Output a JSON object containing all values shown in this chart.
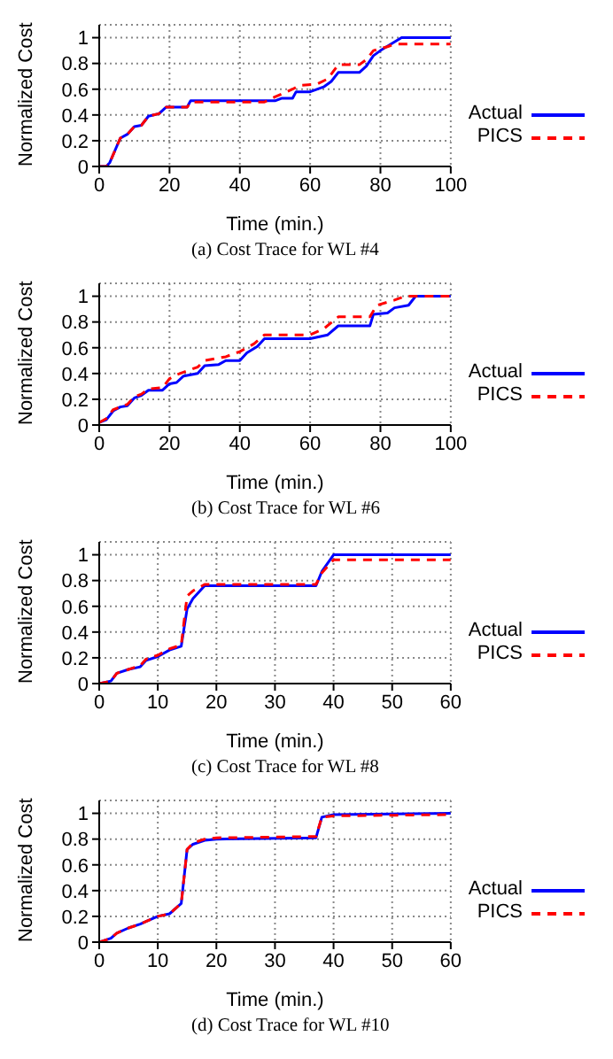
{
  "chart_data": [
    {
      "type": "line",
      "title": "(a) Cost Trace for WL #4",
      "xlabel": "Time (min.)",
      "ylabel": "Normalized Cost",
      "xlim": [
        0,
        100
      ],
      "xticks": [
        0,
        20,
        40,
        60,
        80,
        100
      ],
      "ylim": [
        0,
        1.1
      ],
      "yticks": [
        0,
        0.2,
        0.4,
        0.6,
        0.8,
        1
      ],
      "grid": true,
      "legend": "right",
      "marker": "none",
      "series": [
        {
          "name": "Actual",
          "color": "#0000ff",
          "line_style": "solid",
          "x": [
            0,
            2,
            3,
            6,
            8,
            10,
            12,
            14,
            17,
            19,
            25,
            26,
            50,
            52,
            55,
            56,
            60,
            64,
            66,
            68,
            74,
            76,
            78,
            80,
            83,
            86,
            100
          ],
          "values": [
            0,
            0,
            0.03,
            0.22,
            0.25,
            0.31,
            0.32,
            0.39,
            0.41,
            0.46,
            0.46,
            0.51,
            0.51,
            0.53,
            0.53,
            0.58,
            0.58,
            0.62,
            0.66,
            0.73,
            0.73,
            0.78,
            0.86,
            0.9,
            0.95,
            1.0,
            1.0
          ]
        },
        {
          "name": "PICS",
          "color": "#ff0000",
          "line_style": "dashed",
          "x": [
            0,
            2,
            3,
            6,
            8,
            10,
            12,
            14,
            17,
            19,
            25,
            26,
            47,
            50,
            55,
            57,
            62,
            65,
            68,
            74,
            76,
            78,
            82,
            84,
            100
          ],
          "values": [
            0,
            0,
            0.03,
            0.22,
            0.25,
            0.31,
            0.32,
            0.39,
            0.41,
            0.46,
            0.46,
            0.5,
            0.5,
            0.54,
            0.6,
            0.63,
            0.64,
            0.68,
            0.79,
            0.79,
            0.83,
            0.9,
            0.93,
            0.95,
            0.95
          ]
        }
      ]
    },
    {
      "type": "line",
      "title": "(b) Cost Trace for WL #6",
      "xlabel": "Time (min.)",
      "ylabel": "Normalized Cost",
      "xlim": [
        0,
        100
      ],
      "xticks": [
        0,
        20,
        40,
        60,
        80,
        100
      ],
      "ylim": [
        0,
        1.1
      ],
      "yticks": [
        0,
        0.2,
        0.4,
        0.6,
        0.8,
        1
      ],
      "grid": true,
      "legend": "right",
      "marker": "none",
      "series": [
        {
          "name": "Actual",
          "color": "#0000ff",
          "line_style": "solid",
          "x": [
            0,
            2,
            4,
            6,
            8,
            10,
            12,
            14,
            18,
            20,
            22,
            24,
            28,
            30,
            34,
            36,
            40,
            42,
            45,
            47,
            60,
            65,
            68,
            77,
            78,
            82,
            84,
            88,
            90,
            100
          ],
          "values": [
            0.02,
            0.04,
            0.11,
            0.14,
            0.15,
            0.21,
            0.23,
            0.27,
            0.27,
            0.32,
            0.33,
            0.38,
            0.4,
            0.46,
            0.47,
            0.5,
            0.5,
            0.56,
            0.61,
            0.67,
            0.67,
            0.7,
            0.77,
            0.77,
            0.86,
            0.87,
            0.91,
            0.93,
            1.0,
            1.0
          ]
        },
        {
          "name": "PICS",
          "color": "#ff0000",
          "line_style": "dashed",
          "x": [
            0,
            2,
            4,
            6,
            8,
            10,
            12,
            14,
            18,
            20,
            22,
            26,
            28,
            30,
            36,
            40,
            44,
            47,
            60,
            64,
            68,
            77,
            79,
            84,
            87,
            100
          ],
          "values": [
            0.02,
            0.05,
            0.12,
            0.14,
            0.16,
            0.22,
            0.24,
            0.28,
            0.29,
            0.36,
            0.39,
            0.43,
            0.45,
            0.5,
            0.53,
            0.57,
            0.63,
            0.7,
            0.7,
            0.75,
            0.84,
            0.84,
            0.93,
            0.97,
            1.0,
            1.0
          ]
        }
      ]
    },
    {
      "type": "line",
      "title": "(c) Cost Trace for WL #8",
      "xlabel": "Time (min.)",
      "ylabel": "Normalized Cost",
      "xlim": [
        0,
        60
      ],
      "xticks": [
        0,
        10,
        20,
        30,
        40,
        50,
        60
      ],
      "ylim": [
        0,
        1.1
      ],
      "yticks": [
        0,
        0.2,
        0.4,
        0.6,
        0.8,
        1
      ],
      "grid": true,
      "legend": "right",
      "marker": "none",
      "series": [
        {
          "name": "Actual",
          "color": "#0000ff",
          "line_style": "solid",
          "x": [
            0,
            2,
            3,
            5,
            7,
            8,
            10,
            12,
            14,
            15,
            16,
            18,
            37,
            38,
            40,
            60
          ],
          "values": [
            0,
            0.02,
            0.08,
            0.11,
            0.13,
            0.18,
            0.21,
            0.26,
            0.29,
            0.58,
            0.66,
            0.76,
            0.76,
            0.87,
            1.0,
            1.0
          ]
        },
        {
          "name": "PICS",
          "color": "#ff0000",
          "line_style": "dashed",
          "x": [
            0,
            2,
            3,
            5,
            7,
            8,
            10,
            12,
            14,
            15,
            16,
            18,
            37,
            38,
            40,
            60
          ],
          "values": [
            0,
            0.02,
            0.08,
            0.11,
            0.14,
            0.19,
            0.22,
            0.27,
            0.3,
            0.68,
            0.72,
            0.77,
            0.77,
            0.86,
            0.96,
            0.96
          ]
        }
      ]
    },
    {
      "type": "line",
      "title": "(d) Cost Trace for WL #10",
      "xlabel": "Time (min.)",
      "ylabel": "Normalized Cost",
      "xlim": [
        0,
        60
      ],
      "xticks": [
        0,
        10,
        20,
        30,
        40,
        50,
        60
      ],
      "ylim": [
        0,
        1.1
      ],
      "yticks": [
        0,
        0.2,
        0.4,
        0.6,
        0.8,
        1
      ],
      "grid": true,
      "legend": "right",
      "marker": "none",
      "series": [
        {
          "name": "Actual",
          "color": "#0000ff",
          "line_style": "solid",
          "x": [
            0,
            2,
            3,
            5,
            7,
            8,
            10,
            12,
            14,
            15,
            16,
            18,
            20,
            37,
            38,
            40,
            60
          ],
          "values": [
            0,
            0.03,
            0.07,
            0.11,
            0.14,
            0.16,
            0.2,
            0.22,
            0.3,
            0.72,
            0.76,
            0.79,
            0.8,
            0.81,
            0.97,
            0.99,
            1.0
          ]
        },
        {
          "name": "PICS",
          "color": "#ff0000",
          "line_style": "dashed",
          "x": [
            0,
            2,
            3,
            5,
            7,
            8,
            10,
            12,
            14,
            15,
            16,
            18,
            20,
            37,
            38,
            40,
            60
          ],
          "values": [
            0,
            0.03,
            0.07,
            0.11,
            0.14,
            0.16,
            0.2,
            0.22,
            0.3,
            0.72,
            0.77,
            0.8,
            0.81,
            0.82,
            0.97,
            0.98,
            0.99
          ]
        }
      ]
    }
  ]
}
